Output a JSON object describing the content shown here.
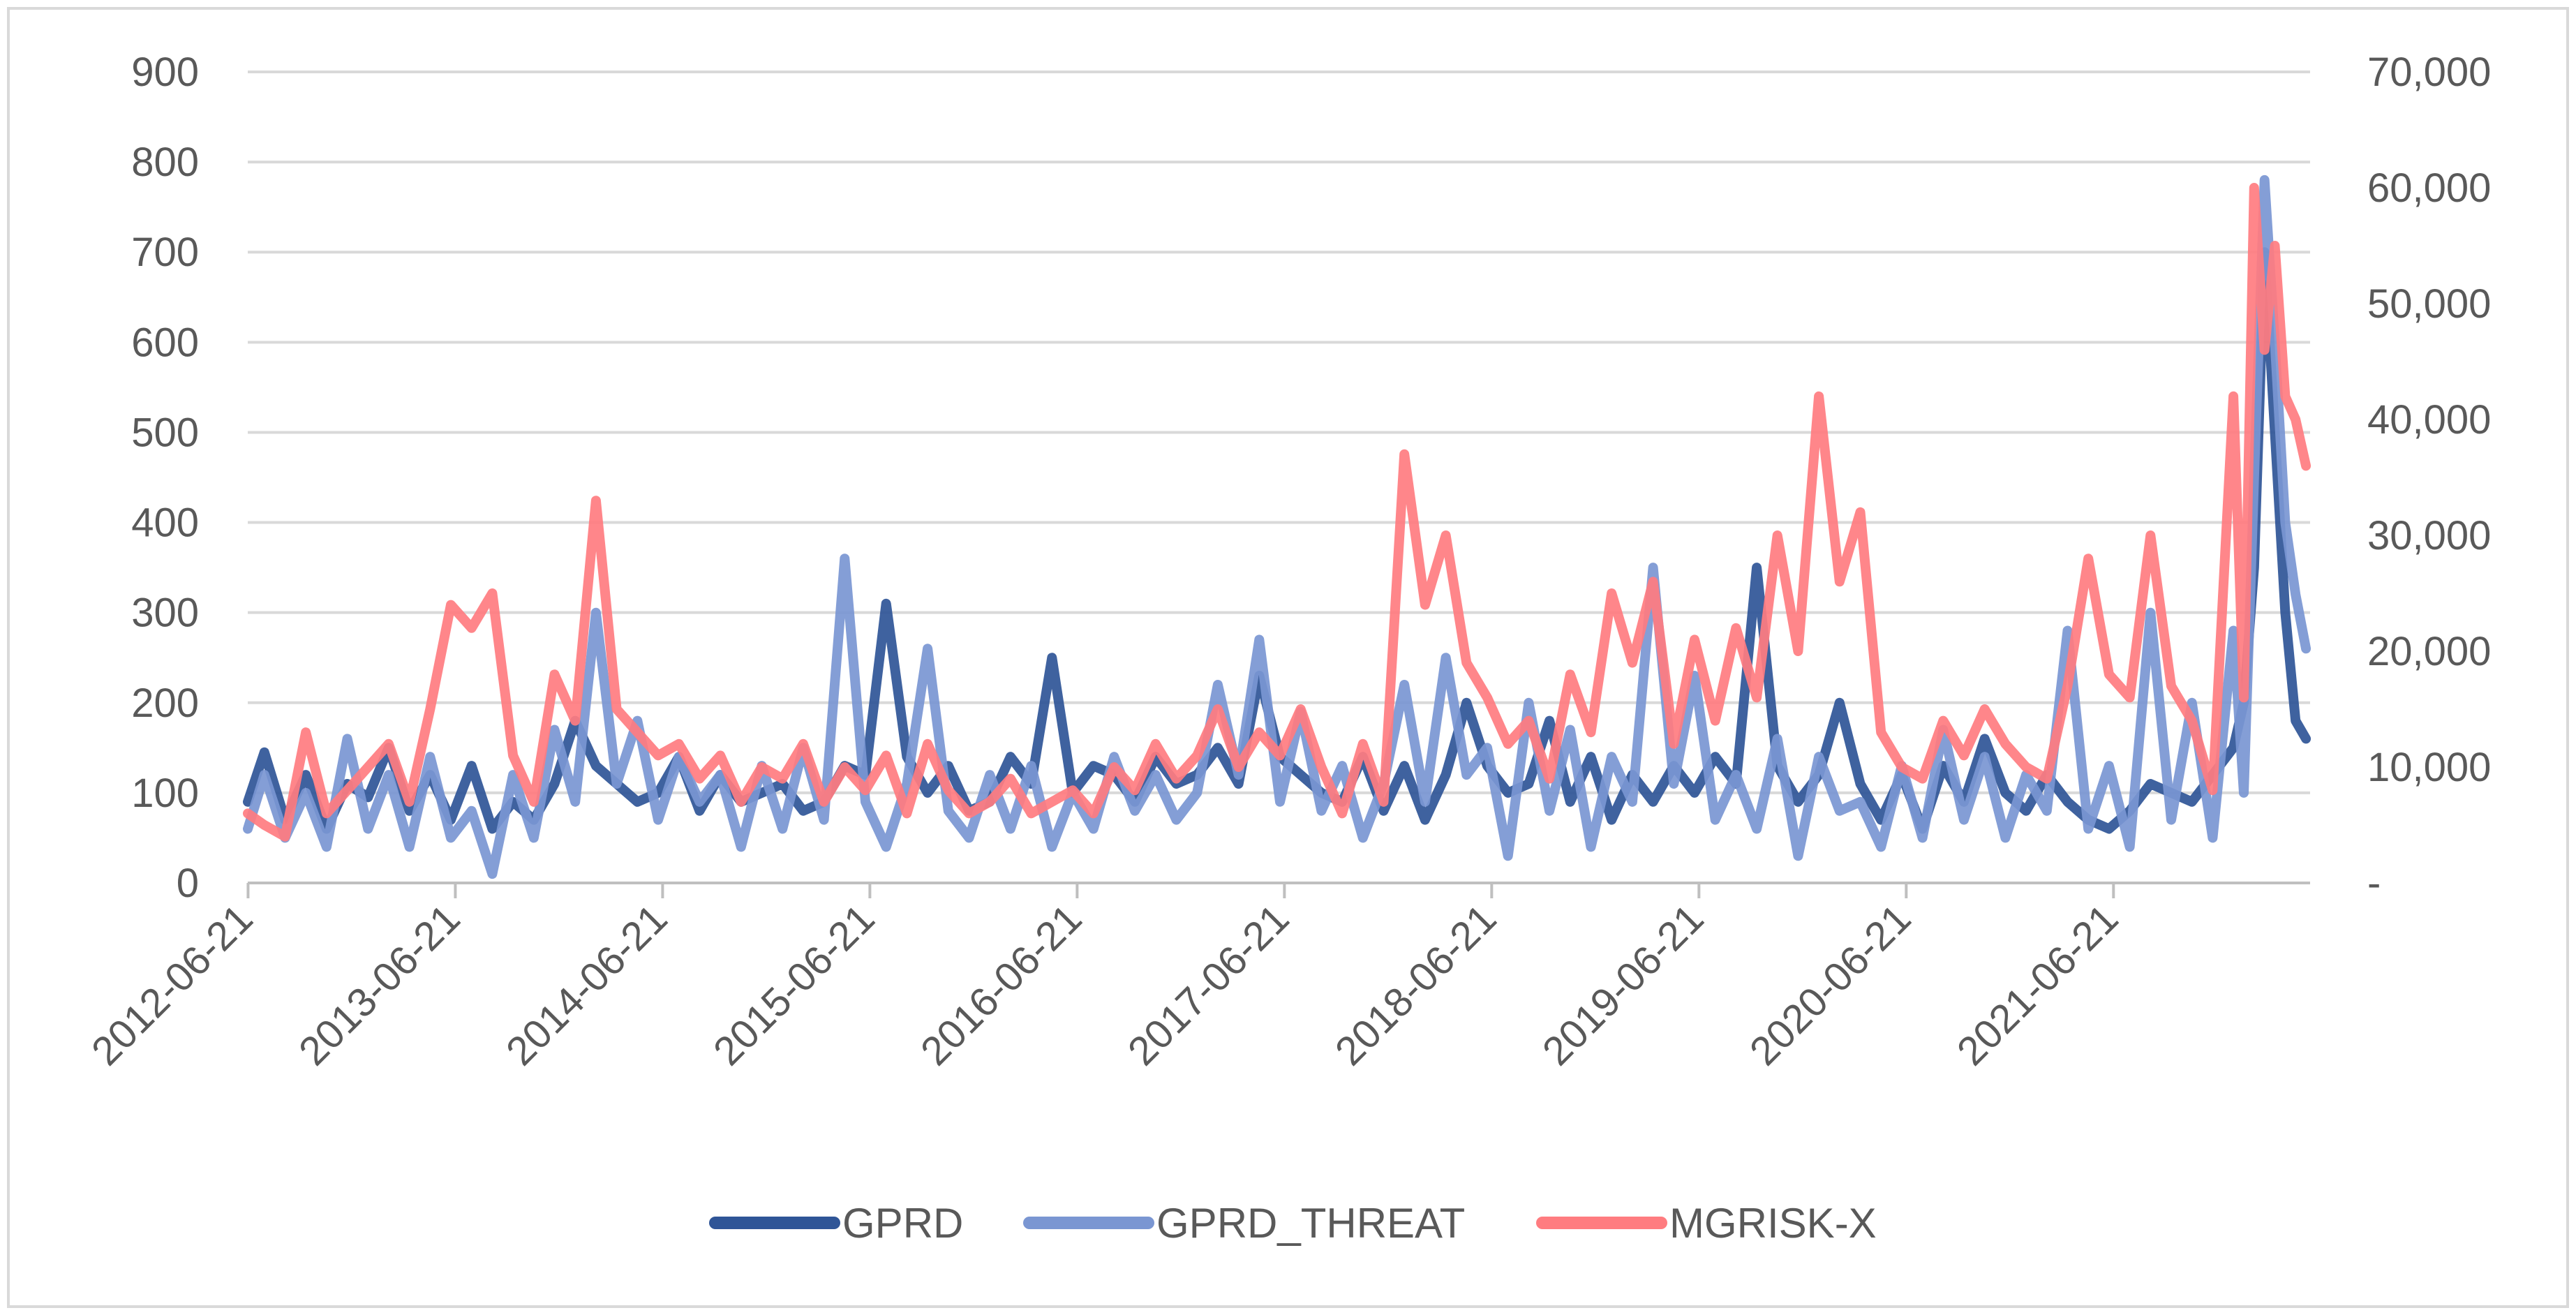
{
  "chart_data": {
    "type": "line",
    "title": "",
    "xlabel": "",
    "ylabel_left": "",
    "ylabel_right": "",
    "x_range": [
      "2012-06-21",
      "2022-05-31"
    ],
    "x_tick_labels": [
      "2012-06-21",
      "2013-06-21",
      "2014-06-21",
      "2015-06-21",
      "2016-06-21",
      "2017-06-21",
      "2018-06-21",
      "2019-06-21",
      "2020-06-21",
      "2021-06-21"
    ],
    "y_left": {
      "min": 0,
      "max": 900,
      "step": 100,
      "tick_labels": [
        "0",
        "100",
        "200",
        "300",
        "400",
        "500",
        "600",
        "700",
        "800",
        "900"
      ]
    },
    "y_right": {
      "min": 0,
      "max": 70000,
      "step": 10000,
      "tick_labels": [
        "-",
        "10,000",
        "20,000",
        "30,000",
        "40,000",
        "50,000",
        "60,000",
        "70,000"
      ]
    },
    "grid": true,
    "legend_position": "bottom-center",
    "series": [
      {
        "name": "GPRD",
        "axis": "left",
        "color": "#2F5597",
        "x": [
          2012.47,
          2012.55,
          2012.65,
          2012.75,
          2012.85,
          2012.95,
          2013.05,
          2013.15,
          2013.25,
          2013.35,
          2013.45,
          2013.55,
          2013.65,
          2013.75,
          2013.85,
          2013.95,
          2014.05,
          2014.15,
          2014.25,
          2014.35,
          2014.45,
          2014.55,
          2014.65,
          2014.75,
          2014.85,
          2014.95,
          2015.05,
          2015.15,
          2015.25,
          2015.35,
          2015.45,
          2015.55,
          2015.65,
          2015.75,
          2015.85,
          2015.95,
          2016.05,
          2016.15,
          2016.25,
          2016.35,
          2016.45,
          2016.55,
          2016.65,
          2016.75,
          2016.85,
          2016.95,
          2017.05,
          2017.15,
          2017.25,
          2017.35,
          2017.45,
          2017.55,
          2017.65,
          2017.75,
          2017.85,
          2017.95,
          2018.05,
          2018.15,
          2018.25,
          2018.35,
          2018.45,
          2018.55,
          2018.65,
          2018.75,
          2018.85,
          2018.95,
          2019.05,
          2019.15,
          2019.25,
          2019.35,
          2019.45,
          2019.55,
          2019.65,
          2019.75,
          2019.85,
          2019.95,
          2020.05,
          2020.15,
          2020.25,
          2020.35,
          2020.45,
          2020.55,
          2020.65,
          2020.75,
          2020.85,
          2020.95,
          2021.05,
          2021.15,
          2021.25,
          2021.35,
          2021.45,
          2021.55,
          2021.65,
          2021.75,
          2021.85,
          2021.95,
          2022.05,
          2022.1,
          2022.15,
          2022.2,
          2022.25,
          2022.3,
          2022.35,
          2022.4
        ],
        "values": [
          90,
          145,
          70,
          120,
          60,
          110,
          95,
          150,
          80,
          120,
          70,
          130,
          60,
          90,
          70,
          110,
          180,
          130,
          110,
          90,
          100,
          140,
          80,
          120,
          90,
          100,
          110,
          80,
          90,
          130,
          120,
          310,
          140,
          100,
          130,
          80,
          90,
          140,
          110,
          250,
          100,
          130,
          120,
          90,
          140,
          110,
          120,
          150,
          110,
          230,
          140,
          120,
          100,
          90,
          140,
          80,
          130,
          70,
          120,
          200,
          130,
          100,
          110,
          180,
          90,
          140,
          70,
          120,
          90,
          130,
          100,
          140,
          110,
          350,
          130,
          90,
          120,
          200,
          110,
          70,
          120,
          60,
          130,
          90,
          160,
          100,
          80,
          120,
          90,
          70,
          60,
          80,
          110,
          100,
          90,
          120,
          150,
          200,
          350,
          700,
          500,
          300,
          180,
          160
        ]
      },
      {
        "name": "GPRD_THREAT",
        "axis": "left",
        "color": "#7A96D2",
        "x": [
          2012.47,
          2012.55,
          2012.65,
          2012.75,
          2012.85,
          2012.95,
          2013.05,
          2013.15,
          2013.25,
          2013.35,
          2013.45,
          2013.55,
          2013.65,
          2013.75,
          2013.85,
          2013.95,
          2014.05,
          2014.15,
          2014.25,
          2014.35,
          2014.45,
          2014.55,
          2014.65,
          2014.75,
          2014.85,
          2014.95,
          2015.05,
          2015.15,
          2015.25,
          2015.35,
          2015.45,
          2015.55,
          2015.65,
          2015.75,
          2015.85,
          2015.95,
          2016.05,
          2016.15,
          2016.25,
          2016.35,
          2016.45,
          2016.55,
          2016.65,
          2016.75,
          2016.85,
          2016.95,
          2017.05,
          2017.15,
          2017.25,
          2017.35,
          2017.45,
          2017.55,
          2017.65,
          2017.75,
          2017.85,
          2017.95,
          2018.05,
          2018.15,
          2018.25,
          2018.35,
          2018.45,
          2018.55,
          2018.65,
          2018.75,
          2018.85,
          2018.95,
          2019.05,
          2019.15,
          2019.25,
          2019.35,
          2019.45,
          2019.55,
          2019.65,
          2019.75,
          2019.85,
          2019.95,
          2020.05,
          2020.15,
          2020.25,
          2020.35,
          2020.45,
          2020.55,
          2020.65,
          2020.75,
          2020.85,
          2020.95,
          2021.05,
          2021.15,
          2021.25,
          2021.35,
          2021.45,
          2021.55,
          2021.65,
          2021.75,
          2021.85,
          2021.95,
          2022.05,
          2022.1,
          2022.15,
          2022.2,
          2022.25,
          2022.3,
          2022.35,
          2022.4
        ],
        "values": [
          60,
          120,
          50,
          100,
          40,
          160,
          60,
          120,
          40,
          140,
          50,
          80,
          10,
          120,
          50,
          170,
          90,
          300,
          110,
          180,
          70,
          140,
          90,
          120,
          40,
          130,
          60,
          150,
          70,
          360,
          90,
          40,
          110,
          260,
          80,
          50,
          120,
          60,
          130,
          40,
          100,
          60,
          140,
          80,
          120,
          70,
          100,
          220,
          120,
          270,
          90,
          190,
          80,
          130,
          50,
          110,
          220,
          90,
          250,
          120,
          150,
          30,
          200,
          80,
          170,
          40,
          140,
          90,
          350,
          110,
          230,
          70,
          120,
          60,
          160,
          30,
          140,
          80,
          90,
          40,
          130,
          50,
          170,
          70,
          140,
          50,
          120,
          80,
          280,
          60,
          130,
          40,
          300,
          70,
          200,
          50,
          280,
          100,
          450,
          780,
          600,
          400,
          320,
          260
        ]
      },
      {
        "name": "MGRISK-X",
        "axis": "right",
        "color": "#FF7C80",
        "x": [
          2012.47,
          2012.55,
          2012.65,
          2012.75,
          2012.85,
          2012.95,
          2013.05,
          2013.15,
          2013.25,
          2013.35,
          2013.45,
          2013.55,
          2013.65,
          2013.75,
          2013.85,
          2013.95,
          2014.05,
          2014.15,
          2014.25,
          2014.35,
          2014.45,
          2014.55,
          2014.65,
          2014.75,
          2014.85,
          2014.95,
          2015.05,
          2015.15,
          2015.25,
          2015.35,
          2015.45,
          2015.55,
          2015.65,
          2015.75,
          2015.85,
          2015.95,
          2016.05,
          2016.15,
          2016.25,
          2016.35,
          2016.45,
          2016.55,
          2016.65,
          2016.75,
          2016.85,
          2016.95,
          2017.05,
          2017.15,
          2017.25,
          2017.35,
          2017.45,
          2017.55,
          2017.65,
          2017.75,
          2017.85,
          2017.95,
          2018.05,
          2018.15,
          2018.25,
          2018.35,
          2018.45,
          2018.55,
          2018.65,
          2018.75,
          2018.85,
          2018.95,
          2019.05,
          2019.15,
          2019.25,
          2019.35,
          2019.45,
          2019.55,
          2019.65,
          2019.75,
          2019.85,
          2019.95,
          2020.05,
          2020.15,
          2020.25,
          2020.35,
          2020.45,
          2020.55,
          2020.65,
          2020.75,
          2020.85,
          2020.95,
          2021.05,
          2021.15,
          2021.25,
          2021.35,
          2021.45,
          2021.55,
          2021.65,
          2021.75,
          2021.85,
          2021.95,
          2022.05,
          2022.1,
          2022.15,
          2022.2,
          2022.25,
          2022.3,
          2022.35,
          2022.4
        ],
        "values": [
          6000,
          5000,
          4000,
          13000,
          6000,
          8000,
          10000,
          12000,
          7000,
          15000,
          24000,
          22000,
          25000,
          11000,
          7000,
          18000,
          14000,
          33000,
          15000,
          13000,
          11000,
          12000,
          9000,
          11000,
          7000,
          10000,
          9000,
          12000,
          7000,
          10000,
          8000,
          11000,
          6000,
          12000,
          8000,
          6000,
          7000,
          9000,
          6000,
          7000,
          8000,
          6000,
          10000,
          8000,
          12000,
          9000,
          11000,
          15000,
          10000,
          13000,
          11000,
          15000,
          10000,
          6000,
          12000,
          7000,
          37000,
          24000,
          30000,
          19000,
          16000,
          12000,
          14000,
          9000,
          18000,
          13000,
          25000,
          19000,
          26000,
          12000,
          21000,
          14000,
          22000,
          16000,
          30000,
          20000,
          42000,
          26000,
          32000,
          13000,
          10000,
          9000,
          14000,
          11000,
          15000,
          12000,
          10000,
          9000,
          17000,
          28000,
          18000,
          16000,
          30000,
          17000,
          14000,
          8000,
          42000,
          16000,
          60000,
          46000,
          55000,
          42000,
          40000,
          36000
        ]
      }
    ]
  },
  "legend": {
    "items": [
      "GPRD",
      "GPRD_THREAT",
      "MGRISK-X"
    ]
  }
}
